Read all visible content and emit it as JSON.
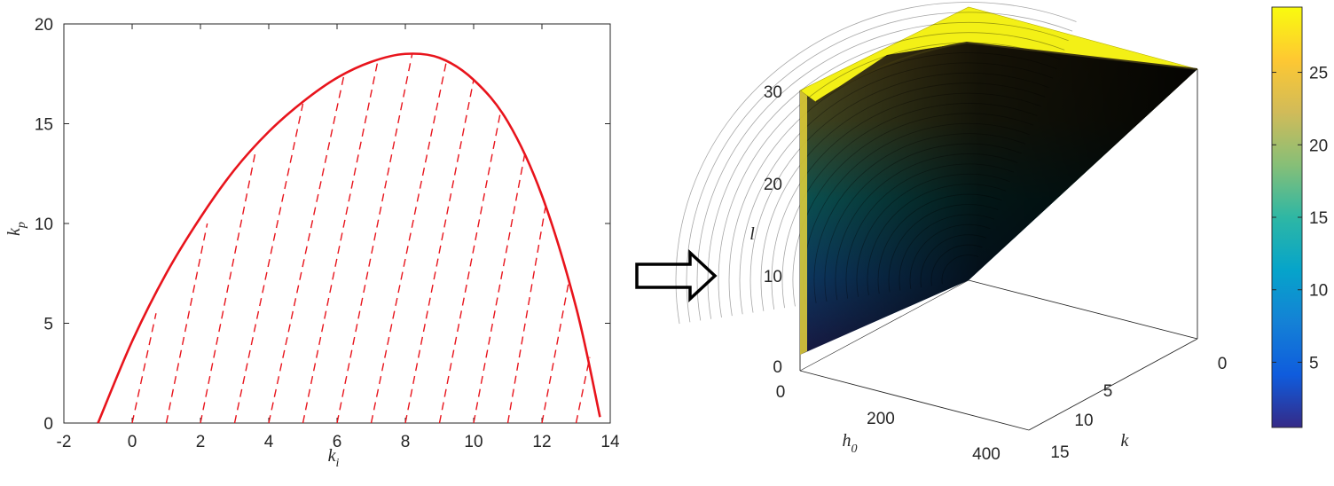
{
  "chart_data": [
    {
      "type": "line",
      "title": "",
      "xlabel": "k",
      "xlabel_sub": "i",
      "ylabel": "k",
      "ylabel_sub": "p",
      "xlim": [
        -2,
        14
      ],
      "ylim": [
        0,
        20
      ],
      "x_ticks": [
        "-2",
        "0",
        "2",
        "4",
        "6",
        "8",
        "10",
        "12",
        "14"
      ],
      "y_ticks": [
        "0",
        "5",
        "10",
        "15",
        "20"
      ],
      "grid": false,
      "series": [
        {
          "style": "solid",
          "color": "#e8141c",
          "x": [
            -1.0,
            0.0,
            1.0,
            2.0,
            3.0,
            4.0,
            5.0,
            6.0,
            7.0,
            8.0,
            9.0,
            10.0,
            11.0,
            12.0,
            13.0,
            13.7
          ],
          "y": [
            0.0,
            4.1,
            7.5,
            10.3,
            12.7,
            14.6,
            16.1,
            17.3,
            18.1,
            18.5,
            18.3,
            17.2,
            15.1,
            11.4,
            5.8,
            0.3
          ]
        }
      ],
      "hatch": {
        "style": "dashed",
        "color": "#e8141c",
        "lines": [
          {
            "x0": 0.0,
            "y0": 0,
            "x1": 0.7,
            "y1": 5.5
          },
          {
            "x0": 1.0,
            "y0": 0,
            "x1": 2.2,
            "y1": 10.0
          },
          {
            "x0": 2.0,
            "y0": 0,
            "x1": 3.6,
            "y1": 13.5
          },
          {
            "x0": 3.0,
            "y0": 0,
            "x1": 5.0,
            "y1": 16.0
          },
          {
            "x0": 4.0,
            "y0": 0,
            "x1": 6.2,
            "y1": 17.4
          },
          {
            "x0": 5.0,
            "y0": 0,
            "x1": 7.2,
            "y1": 18.2
          },
          {
            "x0": 6.0,
            "y0": 0,
            "x1": 8.2,
            "y1": 18.5
          },
          {
            "x0": 7.0,
            "y0": 0,
            "x1": 9.2,
            "y1": 18.1
          },
          {
            "x0": 8.0,
            "y0": 0,
            "x1": 10.0,
            "y1": 17.2
          },
          {
            "x0": 9.0,
            "y0": 0,
            "x1": 10.8,
            "y1": 15.7
          },
          {
            "x0": 10.0,
            "y0": 0,
            "x1": 11.5,
            "y1": 13.5
          },
          {
            "x0": 11.0,
            "y0": 0,
            "x1": 12.1,
            "y1": 10.8
          },
          {
            "x0": 12.0,
            "y0": 0,
            "x1": 12.8,
            "y1": 7.2
          },
          {
            "x0": 13.0,
            "y0": 0,
            "x1": 13.4,
            "y1": 3.3
          }
        ]
      }
    },
    {
      "type": "surface3d",
      "title": "",
      "xlabel": "h",
      "xlabel_sub": "0",
      "ylabel": "k",
      "zlabel": "l",
      "x_ticks": [
        "0",
        "200",
        "400"
      ],
      "y_ticks": [
        "0",
        "5",
        "10",
        "15"
      ],
      "z_ticks": [
        "0",
        "10",
        "20",
        "30"
      ],
      "colorbar": {
        "ticks": [
          "5",
          "10",
          "15",
          "20",
          "25"
        ],
        "range": [
          0.5,
          29.5
        ],
        "colormap": "parula",
        "colors": [
          "#352a87",
          "#0f5cdd",
          "#1481d6",
          "#06a4ca",
          "#2eb7a4",
          "#87bf77",
          "#d1bb59",
          "#fec832",
          "#f9fb0e"
        ]
      }
    }
  ]
}
